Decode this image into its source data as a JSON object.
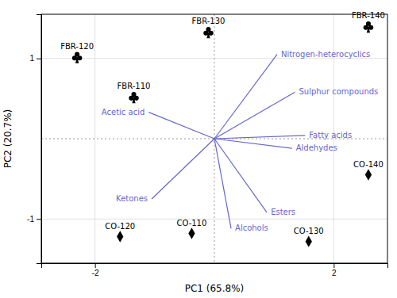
{
  "chart_data": {
    "type": "scatter",
    "xlabel": "PC1 (65.8%)",
    "ylabel": "PC2 (20.7%)",
    "xlim": [
      -2.9,
      2.9
    ],
    "ylim": [
      -1.55,
      1.55
    ],
    "xticks": [
      -2,
      2
    ],
    "yticks": [
      -1,
      1
    ],
    "grid": true,
    "reference_lines": {
      "x": [
        0
      ],
      "y": [
        0
      ],
      "line_style": "dotted"
    },
    "series": [
      {
        "type": "scatter",
        "marker": "club",
        "color": "black",
        "labels": [
          "FBR-110",
          "FBR-120",
          "FBR-130",
          "FBR-140"
        ],
        "x": [
          -1.35,
          -2.3,
          -0.1,
          2.58
        ],
        "values": [
          0.52,
          1.02,
          1.33,
          1.4
        ]
      },
      {
        "type": "scatter",
        "marker": "diamond",
        "color": "black",
        "labels": [
          "CO-110",
          "CO-120",
          "CO-130",
          "CO-140"
        ],
        "x": [
          -0.38,
          -1.58,
          1.58,
          2.58
        ],
        "values": [
          -1.18,
          -1.22,
          -1.28,
          -0.45
        ]
      },
      {
        "type": "vector",
        "color": "#6666cc",
        "origin": [
          0,
          0
        ],
        "labels": [
          "Nitrogen-heterocyclics",
          "Sulphur compounds",
          "Fatty acids",
          "Aldehydes",
          "Acetic acid",
          "Ketones",
          "Esters",
          "Alcohols"
        ],
        "x": [
          1.05,
          1.35,
          1.52,
          1.3,
          -1.1,
          -1.05,
          0.88,
          0.28
        ],
        "values": [
          1.05,
          0.58,
          0.04,
          -0.12,
          0.33,
          -0.75,
          -0.92,
          -1.12
        ]
      }
    ]
  }
}
